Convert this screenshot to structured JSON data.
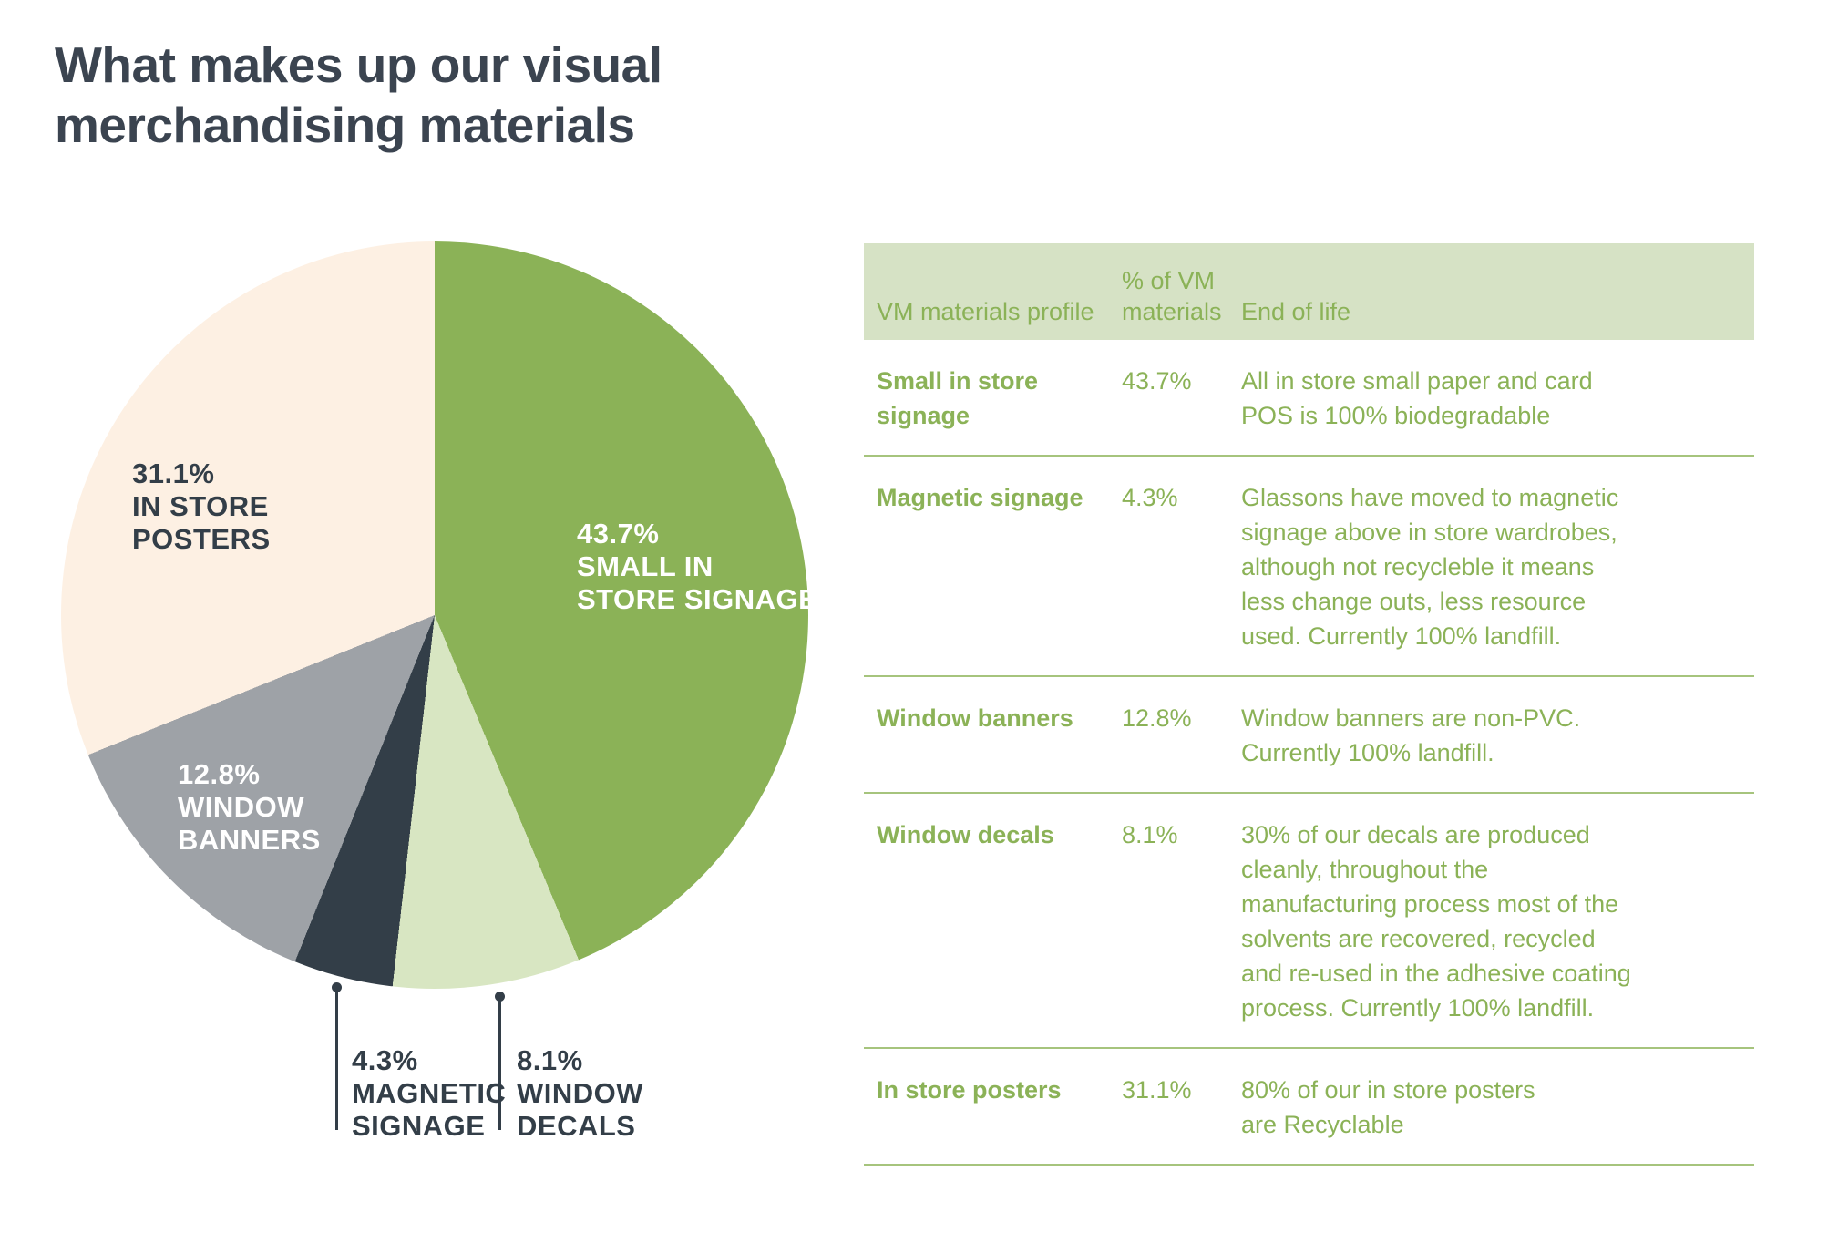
{
  "title": "What makes up our visual\nmerchandising materials",
  "colors": {
    "title_text": "#3b4450",
    "green": "#8bb257",
    "light_green": "#d8e6c2",
    "charcoal": "#333e48",
    "gray": "#9ea2a7",
    "cream": "#fdf0e3",
    "table_header_bg": "#d6e2c5",
    "table_text_green": "#8bb257",
    "separator_green": "#a6c47d"
  },
  "chart_data": {
    "type": "pie",
    "title": "What makes up our visual merchandising materials",
    "start_angle_deg": 0,
    "direction": "clockwise",
    "categories": [
      "Small in store signage",
      "Window decals",
      "Magnetic signage",
      "Window banners",
      "In store posters"
    ],
    "values": [
      43.7,
      8.1,
      4.3,
      12.8,
      31.1
    ],
    "slices": [
      {
        "label": "Small in store signage",
        "value_pct": 43.7,
        "color": "#8bb257",
        "annotation": "43.7%\nSMALL IN\nSTORE SIGNAGE",
        "annotation_color": "#ffffff",
        "annotation_placement": "inside"
      },
      {
        "label": "Window decals",
        "value_pct": 8.1,
        "color": "#d8e6c2",
        "annotation": "8.1%\nWINDOW\nDECALS",
        "annotation_color": "#333e48",
        "annotation_placement": "callout-below"
      },
      {
        "label": "Magnetic signage",
        "value_pct": 4.3,
        "color": "#333e48",
        "annotation": "4.3%\nMAGNETIC\nSIGNAGE",
        "annotation_color": "#333e48",
        "annotation_placement": "callout-below"
      },
      {
        "label": "Window banners",
        "value_pct": 12.8,
        "color": "#9ea2a7",
        "annotation": "12.8%\nWINDOW\nBANNERS",
        "annotation_color": "#ffffff",
        "annotation_placement": "inside"
      },
      {
        "label": "In store posters",
        "value_pct": 31.1,
        "color": "#fdf0e3",
        "annotation": "31.1%\nIN STORE\nPOSTERS",
        "annotation_color": "#333e48",
        "annotation_placement": "inside"
      }
    ]
  },
  "table": {
    "headers": [
      "VM materials profile",
      "% of VM materials",
      "End of life"
    ],
    "rows": [
      {
        "profile": "Small in store signage",
        "pct": "43.7%",
        "end_of_life": "All in store small paper and card\nPOS is 100% biodegradable"
      },
      {
        "profile": "Magnetic signage",
        "pct": "4.3%",
        "end_of_life": "Glassons have moved to magnetic\nsignage above in store wardrobes,\nalthough not recycleble it means\nless change outs, less resource\nused. Currently 100% landfill."
      },
      {
        "profile": "Window banners",
        "pct": "12.8%",
        "end_of_life": "Window banners are non-PVC.\nCurrently 100% landfill."
      },
      {
        "profile": "Window decals",
        "pct": "8.1%",
        "end_of_life": "30% of our decals are produced\ncleanly, throughout the\nmanufacturing process most of the\nsolvents are recovered, recycled\nand re-used in the adhesive coating\nprocess. Currently 100% landfill."
      },
      {
        "profile": "In store posters",
        "pct": "31.1%",
        "end_of_life": "80% of our in store posters\nare Recyclable"
      }
    ]
  }
}
